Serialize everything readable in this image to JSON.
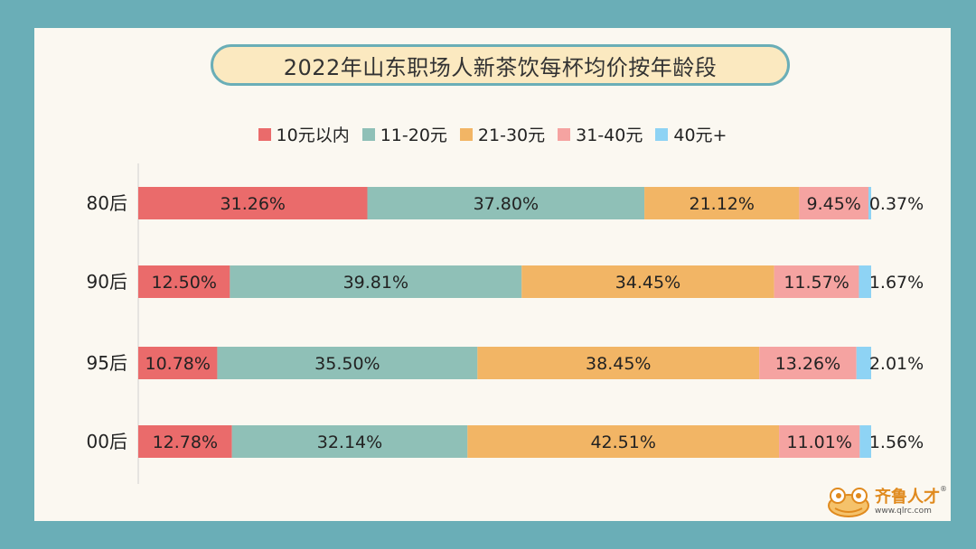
{
  "chart_data": {
    "type": "bar",
    "orientation": "horizontal",
    "stacked": true,
    "title": "2022年山东职场人新茶饮每杯均价按年龄段",
    "categories": [
      "80后",
      "90后",
      "95后",
      "00后"
    ],
    "series": [
      {
        "name": "10元以内",
        "color": "#ea6b6b",
        "values": [
          31.26,
          12.5,
          10.78,
          12.78
        ],
        "labels": [
          "31.26%",
          "12.50%",
          "10.78%",
          "12.78%"
        ]
      },
      {
        "name": "11-20元",
        "color": "#8fc0b7",
        "values": [
          37.8,
          39.81,
          35.5,
          32.14
        ],
        "labels": [
          "37.80%",
          "39.81%",
          "35.50%",
          "32.14%"
        ]
      },
      {
        "name": "21-30元",
        "color": "#f2b565",
        "values": [
          21.12,
          34.45,
          38.45,
          42.51
        ],
        "labels": [
          "21.12%",
          "34.45%",
          "38.45%",
          "42.51%"
        ]
      },
      {
        "name": "31-40元",
        "color": "#f5a3a1",
        "values": [
          9.45,
          11.57,
          13.26,
          11.01
        ],
        "labels": [
          "9.45%",
          "11.57%",
          "13.26%",
          "11.01%"
        ]
      },
      {
        "name": "40元+",
        "color": "#8ed3f4",
        "values": [
          0.37,
          1.67,
          2.01,
          1.56
        ],
        "labels": [
          "0.37%",
          "1.67%",
          "2.01%",
          "1.56%"
        ]
      }
    ],
    "xlim": [
      0,
      100
    ],
    "legend_position": "top-center",
    "grid": false
  },
  "brand": {
    "name": "齐鲁人才",
    "url": "www.qlrc.com",
    "reg_mark": "®",
    "logo_icon": "frog-icon",
    "accent": "#e08a1e"
  }
}
